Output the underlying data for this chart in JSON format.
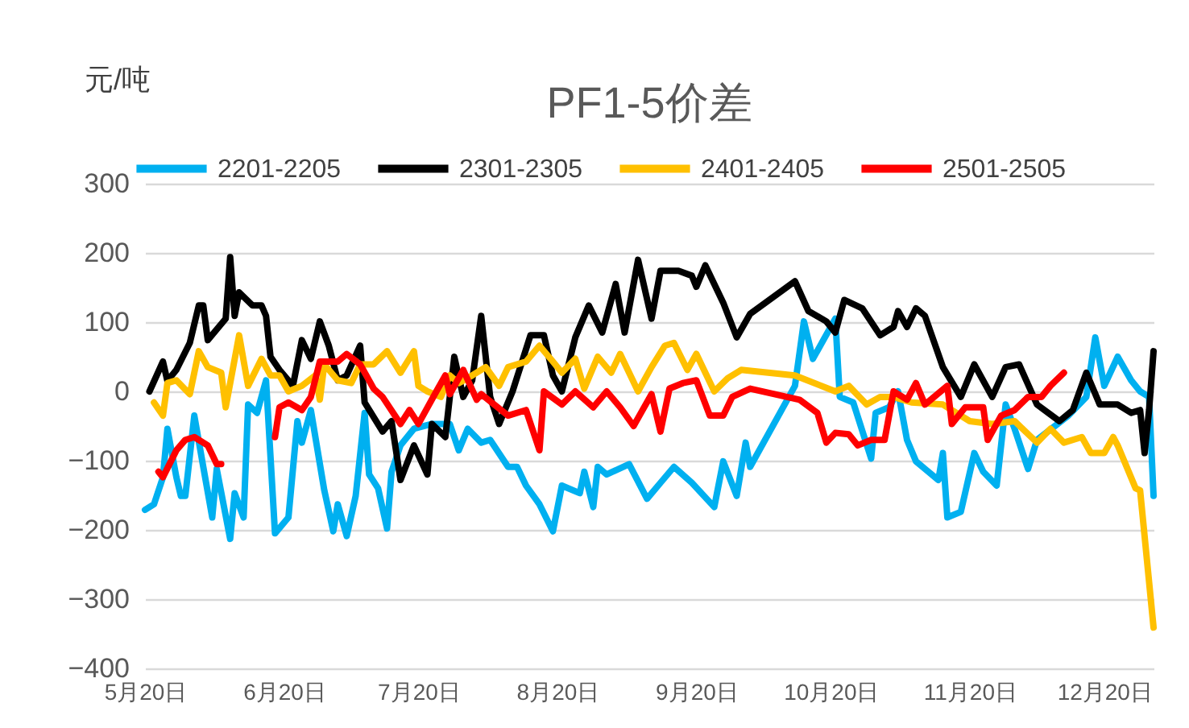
{
  "chart_data": {
    "type": "line",
    "title": "PF1-5价差",
    "ylabel": "元/吨",
    "xlim": [
      "--05-20",
      "--12-31"
    ],
    "xticks": [
      {
        "value": "--05-20",
        "label": "5月20日"
      },
      {
        "value": "--06-20",
        "label": "6月20日"
      },
      {
        "value": "--07-20",
        "label": "7月20日"
      },
      {
        "value": "--08-20",
        "label": "8月20日"
      },
      {
        "value": "--09-20",
        "label": "9月20日"
      },
      {
        "value": "--10-20",
        "label": "10月20日"
      },
      {
        "value": "--11-20",
        "label": "11月20日"
      },
      {
        "value": "--12-20",
        "label": "12月20日"
      }
    ],
    "ylim": [
      -400,
      300
    ],
    "yticks": [
      -400,
      -300,
      -200,
      -100,
      0,
      100,
      200,
      300
    ],
    "grid": "y",
    "legend": "top",
    "series": [
      {
        "name": "2201-2205",
        "color": "#00b0f0",
        "x": [
          "--05-20",
          "--05-22",
          "--05-24",
          "--05-25",
          "--05-27",
          "--05-28",
          "--05-29",
          "--05-31",
          "--06-02",
          "--06-04",
          "--06-05",
          "--06-08",
          "--06-09",
          "--06-11",
          "--06-12",
          "--06-14",
          "--06-16",
          "--06-18",
          "--06-21",
          "--06-23",
          "--06-24",
          "--06-26",
          "--06-29",
          "--07-01",
          "--07-02",
          "--07-04",
          "--07-06",
          "--07-08",
          "--07-09",
          "--07-11",
          "--07-13",
          "--07-14",
          "--07-16",
          "--07-19",
          "--07-23",
          "--07-27",
          "--07-29",
          "--07-31",
          "--08-03",
          "--08-05",
          "--08-09",
          "--08-11",
          "--08-13",
          "--08-16",
          "--08-19",
          "--08-21",
          "--08-25",
          "--08-26",
          "--08-28",
          "--08-29",
          "--08-31",
          "--09-05",
          "--09-09",
          "--09-12",
          "--09-15",
          "--09-19",
          "--09-24",
          "--09-26",
          "--09-29",
          "--10-01",
          "--10-02",
          "--10-12",
          "--10-14",
          "--10-16",
          "--10-21",
          "--10-22",
          "--10-25",
          "--10-29",
          "--10-30",
          "--11-02",
          "--11-04",
          "--11-06",
          "--11-08",
          "--11-10",
          "--11-13",
          "--11-14",
          "--11-15",
          "--11-18",
          "--11-21",
          "--11-23",
          "--11-26",
          "--11-28",
          "--11-30",
          "--12-03",
          "--12-05",
          "--12-09",
          "--12-12",
          "--12-16",
          "--12-18",
          "--12-20",
          "--12-23",
          "--12-26",
          "--12-28",
          "--12-30",
          "--12-31"
        ],
        "values": [
          -171,
          -163,
          -124,
          -54,
          -124,
          -151,
          -151,
          -35,
          -109,
          -182,
          -112,
          -213,
          -147,
          -182,
          -19,
          -31,
          16,
          -205,
          -182,
          -43,
          -74,
          -27,
          -143,
          -202,
          -163,
          -209,
          -151,
          -31,
          -120,
          -140,
          -198,
          -116,
          -78,
          -54,
          -47,
          -47,
          -85,
          -54,
          -74,
          -70,
          -109,
          -109,
          -136,
          -163,
          -202,
          -136,
          -147,
          -116,
          -167,
          -109,
          -120,
          -105,
          -155,
          -132,
          -109,
          -132,
          -167,
          -101,
          -151,
          -74,
          -109,
          8,
          101,
          47,
          105,
          -8,
          -16,
          -97,
          -31,
          -23,
          0,
          -70,
          -101,
          -112,
          -128,
          -89,
          -182,
          -174,
          -89,
          -116,
          -136,
          -19,
          -54,
          -112,
          -70,
          -50,
          -35,
          -8,
          78,
          8,
          50,
          16,
          0,
          -8,
          -151
        ]
      },
      {
        "name": "2301-2305",
        "color": "#000000",
        "x": [
          "--05-21",
          "--05-24",
          "--05-25",
          "--05-27",
          "--05-30",
          "--06-01",
          "--06-02",
          "--06-03",
          "--06-07",
          "--06-08",
          "--06-09",
          "--06-10",
          "--06-13",
          "--06-15",
          "--06-16",
          "--06-17",
          "--06-19",
          "--06-22",
          "--06-24",
          "--06-26",
          "--06-28",
          "--06-30",
          "--07-02",
          "--07-04",
          "--07-07",
          "--07-08",
          "--07-12",
          "--07-14",
          "--07-16",
          "--07-19",
          "--07-22",
          "--07-23",
          "--07-26",
          "--07-28",
          "--07-30",
          "--08-01",
          "--08-03",
          "--08-05",
          "--08-07",
          "--08-10",
          "--08-14",
          "--08-17",
          "--08-19",
          "--08-21",
          "--08-24",
          "--08-27",
          "--08-30",
          "--09-02",
          "--09-04",
          "--09-07",
          "--09-10",
          "--09-12",
          "--09-16",
          "--09-19",
          "--09-20",
          "--09-22",
          "--09-26",
          "--09-29",
          "--10-02",
          "--10-12",
          "--10-15",
          "--10-19",
          "--10-21",
          "--10-23",
          "--10-27",
          "--10-31",
          "--11-03",
          "--11-04",
          "--11-06",
          "--11-08",
          "--11-10",
          "--11-14",
          "--11-18",
          "--11-21",
          "--11-25",
          "--11-28",
          "--12-01",
          "--12-05",
          "--12-10",
          "--12-13",
          "--12-16",
          "--12-19",
          "--12-23",
          "--12-26",
          "--12-28",
          "--12-29",
          "--12-30",
          "--12-31"
        ],
        "values": [
          0,
          43,
          15,
          31,
          70,
          124,
          124,
          74,
          105,
          194,
          109,
          143,
          124,
          124,
          109,
          50,
          31,
          8,
          74,
          47,
          101,
          66,
          16,
          23,
          66,
          -16,
          -58,
          -43,
          -128,
          -78,
          -120,
          -47,
          -66,
          50,
          -8,
          16,
          109,
          -8,
          -47,
          0,
          81,
          81,
          23,
          0,
          78,
          124,
          85,
          155,
          85,
          190,
          105,
          174,
          174,
          167,
          151,
          182,
          128,
          78,
          112,
          159,
          116,
          101,
          85,
          132,
          120,
          81,
          93,
          116,
          93,
          120,
          109,
          35,
          -8,
          39,
          -8,
          35,
          39,
          -19,
          -43,
          -27,
          27,
          -19,
          -19,
          -31,
          -27,
          -89,
          -27,
          58
        ]
      },
      {
        "name": "2401-2405",
        "color": "#ffc000",
        "x": [
          "--05-22",
          "--05-24",
          "--05-25",
          "--05-27",
          "--05-30",
          "--06-01",
          "--06-03",
          "--06-06",
          "--06-07",
          "--06-10",
          "--06-12",
          "--06-15",
          "--06-17",
          "--06-19",
          "--06-21",
          "--06-24",
          "--06-27",
          "--06-28",
          "--06-29",
          "--07-02",
          "--07-05",
          "--07-07",
          "--07-10",
          "--07-13",
          "--07-16",
          "--07-19",
          "--07-20",
          "--07-22",
          "--07-25",
          "--07-27",
          "--07-29",
          "--08-01",
          "--08-04",
          "--08-07",
          "--08-09",
          "--08-13",
          "--08-16",
          "--08-19",
          "--08-21",
          "--08-24",
          "--08-26",
          "--08-29",
          "--09-01",
          "--09-03",
          "--09-07",
          "--09-10",
          "--09-13",
          "--09-15",
          "--09-18",
          "--09-20",
          "--09-24",
          "--09-27",
          "--09-30",
          "--10-12",
          "--10-21",
          "--10-24",
          "--10-28",
          "--10-31",
          "--11-03",
          "--11-07",
          "--11-14",
          "--11-20",
          "--11-25",
          "--11-30",
          "--12-05",
          "--12-08",
          "--12-11",
          "--12-15",
          "--12-17",
          "--12-20",
          "--12-22",
          "--12-23",
          "--12-27",
          "--12-28",
          "--12-31"
        ],
        "values": [
          -16,
          -35,
          12,
          16,
          -4,
          58,
          35,
          27,
          -23,
          81,
          8,
          47,
          23,
          23,
          0,
          8,
          23,
          -12,
          39,
          16,
          12,
          39,
          39,
          58,
          27,
          58,
          8,
          0,
          -8,
          23,
          12,
          23,
          35,
          8,
          35,
          43,
          66,
          43,
          27,
          47,
          4,
          50,
          27,
          54,
          0,
          35,
          66,
          70,
          31,
          54,
          0,
          19,
          31,
          23,
          0,
          8,
          -19,
          -8,
          -8,
          -16,
          -19,
          -43,
          -47,
          -43,
          -74,
          -54,
          -74,
          -66,
          -89,
          -89,
          -66,
          -78,
          -140,
          -143,
          -341
        ]
      },
      {
        "name": "2501-2505",
        "color": "#ff0000",
        "x": [
          "--05-23",
          "--05-24",
          "--05-27",
          "--05-29",
          "--05-31",
          "--06-03",
          "--06-05",
          "--06-06",
          "--06-12",
          "--06-18",
          "--06-19",
          "--06-21",
          "--06-24",
          "--06-26",
          "--06-28",
          "--07-02",
          "--07-04",
          "--07-07",
          "--07-10",
          "--07-12",
          "--07-16",
          "--07-18",
          "--07-20",
          "--07-24",
          "--07-26",
          "--07-27",
          "--07-30",
          "--08-02",
          "--08-03",
          "--08-09",
          "--08-13",
          "--08-16",
          "--08-17",
          "--08-21",
          "--08-24",
          "--08-28",
          "--08-31",
          "--09-03",
          "--09-06",
          "--09-10",
          "--09-12",
          "--09-14",
          "--09-17",
          "--09-20",
          "--09-23",
          "--09-26",
          "--09-28",
          "--10-02",
          "--10-13",
          "--10-17",
          "--10-19",
          "--10-21",
          "--10-24",
          "--10-26",
          "--10-29",
          "--11-01",
          "--11-03",
          "--11-06",
          "--11-08",
          "--11-10",
          "--11-15",
          "--11-16",
          "--11-19",
          "--11-23",
          "--11-24",
          "--11-27",
          "--11-30",
          "--12-03",
          "--12-06",
          "--12-08",
          "--12-11"
        ],
        "values": [
          -116,
          -124,
          -85,
          -70,
          -66,
          -78,
          -105,
          -105,
          null,
          -66,
          -23,
          -16,
          -27,
          -8,
          43,
          43,
          54,
          39,
          4,
          -8,
          -47,
          -27,
          -47,
          0,
          23,
          -4,
          31,
          -12,
          -4,
          -35,
          -27,
          -85,
          0,
          -19,
          0,
          -23,
          0,
          -23,
          -50,
          -4,
          -58,
          4,
          12,
          16,
          -35,
          -35,
          -8,
          4,
          -12,
          -31,
          -74,
          -60,
          -62,
          -78,
          -70,
          -70,
          0,
          -12,
          12,
          -19,
          8,
          -47,
          -23,
          -23,
          -70,
          -35,
          -27,
          -8,
          -8,
          8,
          27
        ]
      }
    ]
  }
}
